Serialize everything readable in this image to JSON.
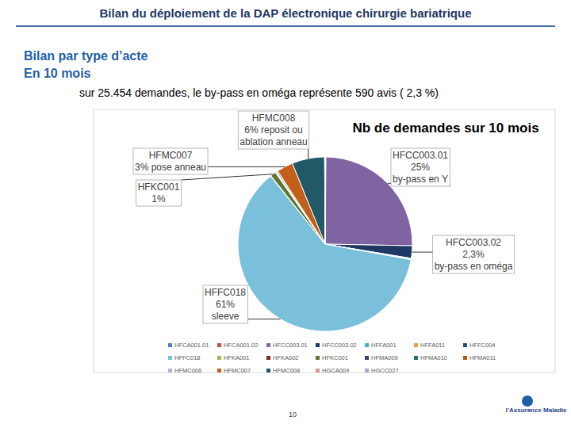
{
  "header": {
    "title": "Bilan du déploiement de la DAP électronique chirurgie bariatrique",
    "subtitle_1": "Bilan par type d’acte",
    "subtitle_2": "En 10 mois",
    "summary": "sur 25.454  demandes, le by-pass en oméga représente 590 avis ( 2,3 %)"
  },
  "chart_data": {
    "type": "pie",
    "title": "Nb de demandes sur 10 mois",
    "categories": [
      "HFCA001.01",
      "HFCA001.02",
      "HFCC003.01",
      "HFCC003.02",
      "HFFA001",
      "HFFA011",
      "HFFC004",
      "HFFC018",
      "HFKA001",
      "HFKA002",
      "HFKC001",
      "HFMA009",
      "HFMA010",
      "HFMA011",
      "HFMC006",
      "HFMC007",
      "HFMC008",
      "HGCA009",
      "HGCC027"
    ],
    "values": [
      0.1,
      0.05,
      25,
      2.3,
      0.1,
      0.05,
      0.1,
      61,
      0.05,
      0.05,
      1,
      0.1,
      0.05,
      0.05,
      0.3,
      3,
      6,
      0.05,
      0.05
    ],
    "value_labels": [
      null,
      null,
      "25%",
      "2,3%",
      null,
      null,
      null,
      "61%",
      null,
      null,
      "1%",
      null,
      null,
      null,
      null,
      "3%",
      "6%",
      null,
      null
    ],
    "descriptions": [
      null,
      null,
      "by-pass en Y",
      "by-pass en oméga",
      null,
      null,
      null,
      "sleeve",
      null,
      null,
      null,
      null,
      null,
      null,
      null,
      "pose anneau",
      "reposit ou ablation anneau",
      null,
      null
    ],
    "colors": [
      "#4f81bd",
      "#c0504d",
      "#8064a2",
      "#1f3864",
      "#4bacc6",
      "#f79646",
      "#2c4d75",
      "#7ac0da",
      "#9bbb59",
      "#772c2a",
      "#5f7530",
      "#4d3b62",
      "#276a7c",
      "#b65708",
      "#a5b6d6",
      "#c0601a",
      "#215967",
      "#d99694",
      "#b3a2c7"
    ],
    "legend": "bottom",
    "data_labels": true
  },
  "footer": {
    "page_number": "10",
    "logo": "l’Assurance Maladie"
  }
}
